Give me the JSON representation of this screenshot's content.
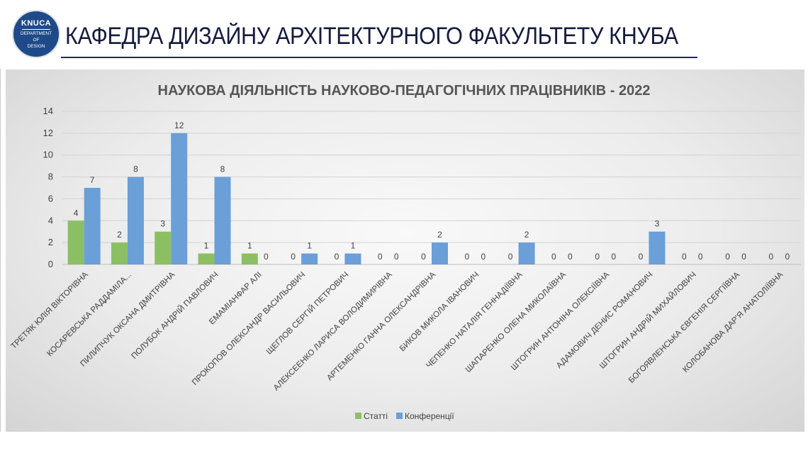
{
  "header": {
    "logo_top": "KNUCA",
    "logo_lines": [
      "DEPARTMENT",
      "OF",
      "DESIGN"
    ],
    "title": "КАФЕДРА ДИЗАЙНУ АРХІТЕКТУРНОГО ФАКУЛЬТЕТУ КНУБА"
  },
  "colors": {
    "series_articles": "#8cbf64",
    "series_conferences": "#6a9fd8",
    "grid": "#d2d2d2"
  },
  "chart_data": {
    "type": "bar",
    "title": "НАУКОВА ДІЯЛЬНІСТЬ НАУКОВО-ПЕДАГОГІЧНИХ ПРАЦІВНИКІВ - 2022",
    "xlabel": "",
    "ylabel": "",
    "ylim": [
      0,
      14
    ],
    "yticks": [
      0,
      2,
      4,
      6,
      8,
      10,
      12,
      14
    ],
    "grid": true,
    "legend_position": "bottom",
    "categories": [
      "ТРЕТЯК ЮЛІЯ ВІКТОРІВНА",
      "КОСАРЕВСЬКА РАДДАМІЛА...",
      "ПИЛИПЧУК ОКСАНА ДМИТРІВНА",
      "ПОЛУБОК АНДРІЙ ПАВЛОВИЧ",
      "ЕМАМІАНФАР АЛІ",
      "ПРОКОПОВ ОЛЕКСАНДР ВАСИЛЬОВИЧ",
      "ЩЕГЛОВ СЕРГІЙ ПЕТРОВИЧ",
      "АЛЕКСЕЕНКО ЛАРИСА ВОЛОДИМИРІВНА",
      "АРТЕМЕНКО ГАННА ОЛЕКСАНДРІВНА",
      "БИКОВ МИКОЛА ІВАНОВИЧ",
      "ЧЕПЕНКО НАТАЛІЯ ГЕННАДІЇВНА",
      "ШАПАРЕНКО ОЛЕНА МИКОЛАЇВНА",
      "ШТОГРИН АНТОНІНА ОЛЕКСІЇВНА",
      "АДАМОВИЧ ДЕНИС РОМАНОВИЧ",
      "ШТОГРИН АНДРІЙ МИХАЙЛОВИЧ",
      "БОГОЯВЛЕНСЬКА ЄВГЕНІЯ СЕРГІЇВНА",
      "КОЛОБАНОВА ДАР'Я АНАТОЛІЇВНА"
    ],
    "series": [
      {
        "name": "Статті",
        "values": [
          4,
          2,
          3,
          1,
          1,
          0,
          0,
          0,
          0,
          0,
          0,
          0,
          0,
          0,
          0,
          0,
          0
        ]
      },
      {
        "name": "Конференції",
        "values": [
          7,
          8,
          12,
          8,
          0,
          1,
          1,
          0,
          2,
          0,
          2,
          0,
          0,
          3,
          0,
          0,
          0
        ]
      }
    ]
  }
}
